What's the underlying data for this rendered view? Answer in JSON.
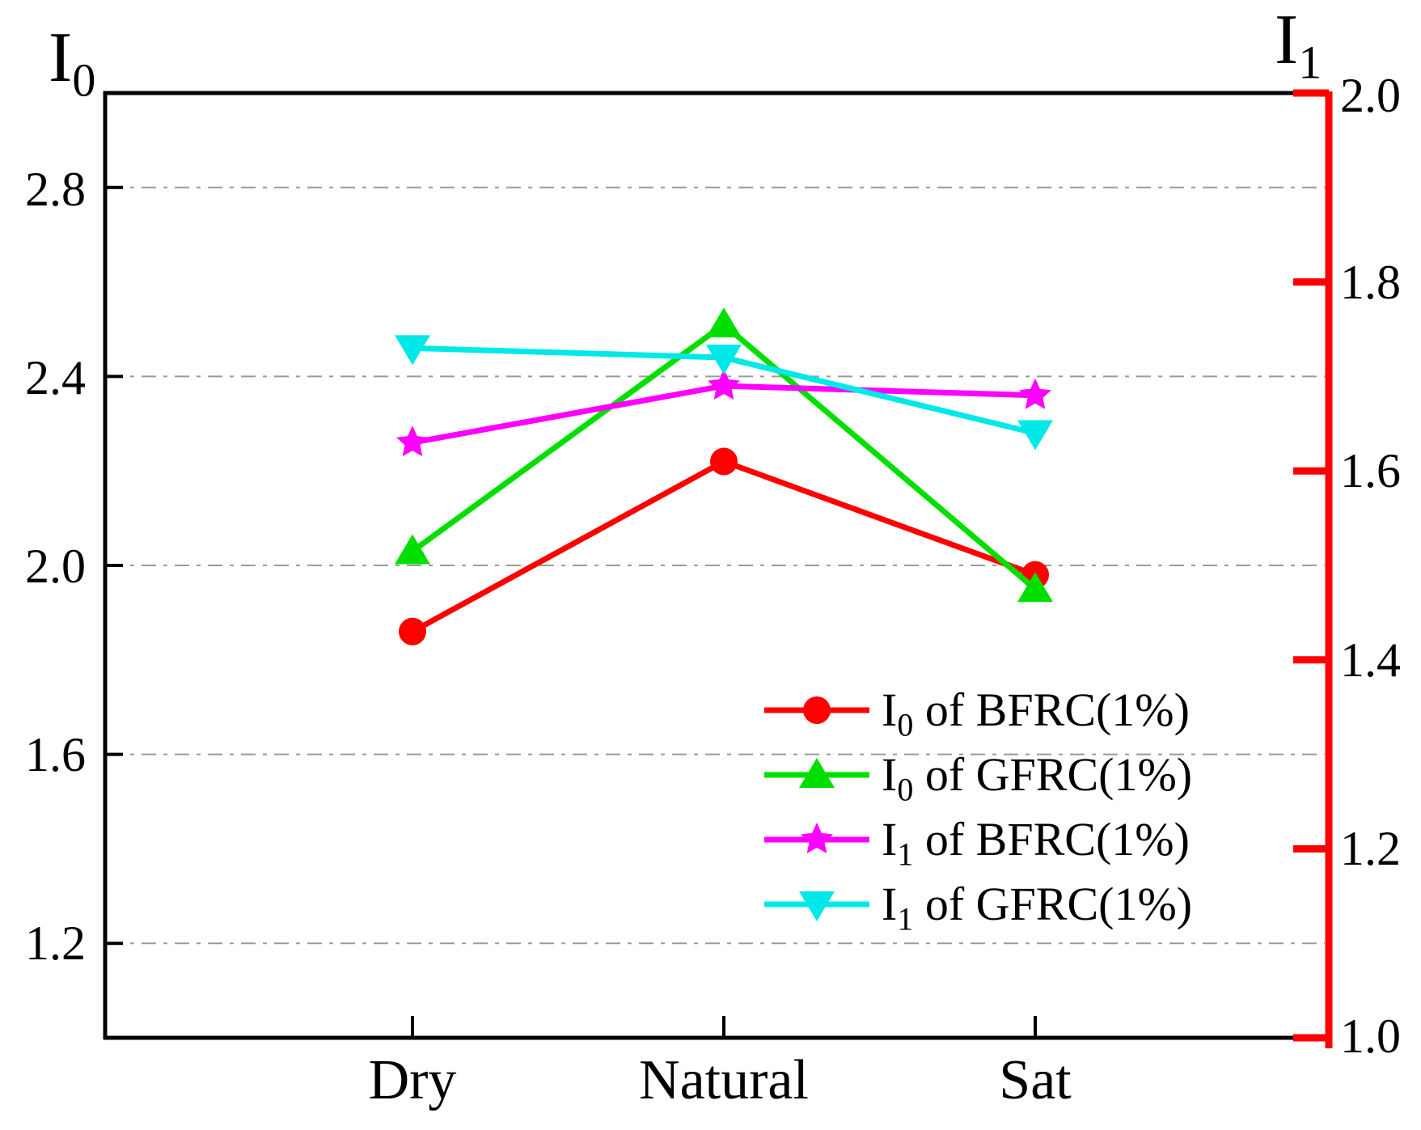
{
  "chart_data": {
    "type": "line",
    "title": "",
    "categories": [
      "Dry",
      "Natural",
      "Sat"
    ],
    "axes": {
      "left": {
        "title_main": "I",
        "title_sub": "0",
        "min": 1.0,
        "max": 3.0,
        "tick_values": [
          2.8,
          2.4,
          2.0,
          1.6,
          1.2
        ],
        "tick_labels": [
          "2.8",
          "2.4",
          "2.0",
          "1.6",
          "1.2"
        ],
        "color": "#000000"
      },
      "right": {
        "title_main": "I",
        "title_sub": "1",
        "min": 1.0,
        "max": 2.0,
        "tick_values": [
          2.0,
          1.8,
          1.6,
          1.4,
          1.2,
          1.0
        ],
        "tick_labels": [
          "2.0",
          "1.8",
          "1.6",
          "1.4",
          "1.2",
          "1.0"
        ],
        "color": "#ff0000"
      }
    },
    "grid": {
      "on": true,
      "axis": "left",
      "values": [
        2.8,
        2.4,
        2.0,
        1.6,
        1.2
      ],
      "style": "dash-dot",
      "color": "#9a9a9a"
    },
    "series": [
      {
        "id": "i0-bfrc",
        "label": "I0 of BFRC(1%)",
        "axis": "left",
        "marker": "circle",
        "color": "#ff0000",
        "values": [
          1.86,
          2.22,
          1.98
        ]
      },
      {
        "id": "i0-gfrc",
        "label": "I0 of GFRC(1%)",
        "axis": "left",
        "marker": "triangle-up",
        "color": "#00df00",
        "values": [
          2.03,
          2.51,
          1.95
        ]
      },
      {
        "id": "i1-bfrc",
        "label": "I1 of BFRC(1%)",
        "axis": "right",
        "marker": "star",
        "color": "#ff00ff",
        "values": [
          1.63,
          1.69,
          1.68
        ]
      },
      {
        "id": "i1-gfrc",
        "label": "I1 of GFRC(1%)",
        "axis": "right",
        "marker": "triangle-down",
        "color": "#00e8e8",
        "values": [
          1.73,
          1.72,
          1.64
        ]
      }
    ],
    "legend": {
      "position": "inside-bottom-right",
      "entries": [
        {
          "main": "I",
          "sub": "0",
          "rest": " of BFRC(1%)"
        },
        {
          "main": "I",
          "sub": "0",
          "rest": " of GFRC(1%)"
        },
        {
          "main": "I",
          "sub": "1",
          "rest": " of BFRC(1%)"
        },
        {
          "main": "I",
          "sub": "1",
          "rest": " of GFRC(1%)"
        }
      ]
    }
  }
}
